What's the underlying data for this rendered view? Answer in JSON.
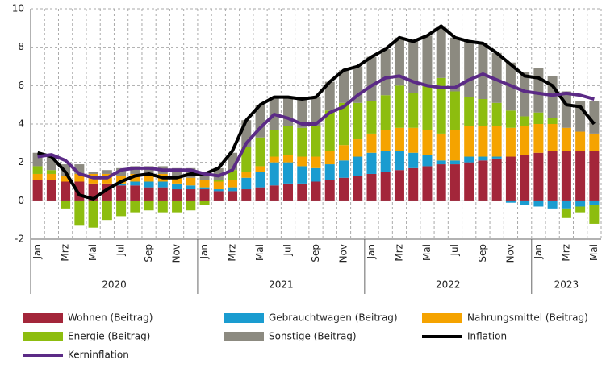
{
  "chart_data": {
    "type": "stacked_bar_line",
    "categories": [
      "Jan",
      null,
      "Mrz",
      null,
      "Mai",
      null,
      "Jul",
      null,
      "Sep",
      null,
      "Nov",
      null,
      "Jan",
      null,
      "Mrz",
      null,
      "Mai",
      null,
      "Jul",
      null,
      "Sep",
      null,
      "Nov",
      null,
      "Jan",
      null,
      "Mrz",
      null,
      "Mai",
      null,
      "Jul",
      null,
      "Sep",
      null,
      "Nov",
      null,
      "Jan",
      null,
      "Mrz",
      null,
      "Mai"
    ],
    "years": [
      "2020",
      "2021",
      "2022",
      "2023"
    ],
    "ylim": [
      -2,
      10
    ],
    "yticks": [
      -2,
      0,
      2,
      4,
      6,
      8,
      10
    ],
    "grid": true,
    "series": [
      {
        "name": "Wohnen (Beitrag)",
        "color": "#a3263a",
        "values": [
          1.1,
          1.1,
          1.0,
          1.0,
          0.9,
          0.9,
          0.8,
          0.8,
          0.7,
          0.7,
          0.6,
          0.6,
          0.6,
          0.5,
          0.5,
          0.6,
          0.7,
          0.8,
          0.9,
          0.9,
          1.0,
          1.1,
          1.2,
          1.3,
          1.4,
          1.5,
          1.6,
          1.7,
          1.8,
          1.9,
          1.9,
          2.0,
          2.1,
          2.2,
          2.3,
          2.4,
          2.5,
          2.6,
          2.6,
          2.6,
          2.6
        ]
      },
      {
        "name": "Gebrauchtwagen (Beitrag)",
        "color": "#1a9cd0",
        "values": [
          0.0,
          0.0,
          0.0,
          0.0,
          0.0,
          0.0,
          0.1,
          0.2,
          0.3,
          0.3,
          0.3,
          0.2,
          0.1,
          0.1,
          0.2,
          0.6,
          0.8,
          1.2,
          1.1,
          0.9,
          0.7,
          0.8,
          0.9,
          1.0,
          1.1,
          1.1,
          1.0,
          0.8,
          0.6,
          0.2,
          0.2,
          0.3,
          0.2,
          0.1,
          -0.1,
          -0.2,
          -0.3,
          -0.4,
          -0.4,
          -0.3,
          -0.2
        ]
      },
      {
        "name": "Nahrungsmittel (Beitrag)",
        "color": "#f5a300",
        "values": [
          0.3,
          0.3,
          0.3,
          0.4,
          0.5,
          0.5,
          0.4,
          0.4,
          0.4,
          0.4,
          0.4,
          0.4,
          0.4,
          0.4,
          0.4,
          0.3,
          0.3,
          0.3,
          0.4,
          0.5,
          0.6,
          0.7,
          0.8,
          0.9,
          1.0,
          1.1,
          1.2,
          1.3,
          1.3,
          1.4,
          1.6,
          1.6,
          1.6,
          1.6,
          1.5,
          1.5,
          1.5,
          1.4,
          1.2,
          1.0,
          0.9
        ]
      },
      {
        "name": "Energie (Beitrag)",
        "color": "#8dbd0f",
        "values": [
          0.4,
          0.2,
          -0.4,
          -1.3,
          -1.4,
          -1.0,
          -0.8,
          -0.6,
          -0.5,
          -0.6,
          -0.6,
          -0.5,
          -0.2,
          0.1,
          0.5,
          1.3,
          1.5,
          1.4,
          1.5,
          1.5,
          1.6,
          2.1,
          2.2,
          1.9,
          1.7,
          1.8,
          2.2,
          1.8,
          2.3,
          2.9,
          2.0,
          1.5,
          1.4,
          1.2,
          0.9,
          0.5,
          0.6,
          0.3,
          -0.5,
          -0.3,
          -1.0
        ]
      },
      {
        "name": "Sonstige (Beitrag)",
        "color": "#8c8a80",
        "values": [
          0.7,
          0.7,
          0.6,
          0.5,
          0.1,
          0.2,
          0.4,
          0.4,
          0.4,
          0.4,
          0.4,
          0.5,
          0.4,
          0.6,
          0.9,
          1.4,
          1.7,
          1.7,
          1.5,
          1.5,
          1.5,
          1.5,
          1.7,
          1.9,
          2.3,
          2.4,
          2.5,
          2.7,
          2.6,
          2.7,
          2.8,
          2.9,
          2.9,
          2.6,
          2.5,
          2.3,
          2.3,
          2.2,
          1.9,
          1.6,
          1.7
        ]
      },
      {
        "name": "Inflation",
        "type": "line",
        "color": "#000000",
        "values": [
          2.5,
          2.3,
          1.5,
          0.3,
          0.1,
          0.6,
          1.0,
          1.3,
          1.4,
          1.2,
          1.2,
          1.4,
          1.4,
          1.7,
          2.6,
          4.2,
          5.0,
          5.4,
          5.4,
          5.3,
          5.4,
          6.2,
          6.8,
          7.0,
          7.5,
          7.9,
          8.5,
          8.3,
          8.6,
          9.1,
          8.5,
          8.3,
          8.2,
          7.7,
          7.1,
          6.5,
          6.4,
          6.0,
          5.0,
          4.9,
          4.0
        ]
      },
      {
        "name": "Kerninflation",
        "type": "line",
        "color": "#5b2a86",
        "values": [
          2.3,
          2.4,
          2.1,
          1.4,
          1.2,
          1.2,
          1.6,
          1.7,
          1.7,
          1.6,
          1.6,
          1.6,
          1.4,
          1.3,
          1.6,
          3.0,
          3.8,
          4.5,
          4.3,
          4.0,
          4.0,
          4.6,
          4.9,
          5.5,
          6.0,
          6.4,
          6.5,
          6.2,
          6.0,
          5.9,
          5.9,
          6.3,
          6.6,
          6.3,
          6.0,
          5.7,
          5.6,
          5.5,
          5.6,
          5.5,
          5.3
        ]
      }
    ]
  }
}
